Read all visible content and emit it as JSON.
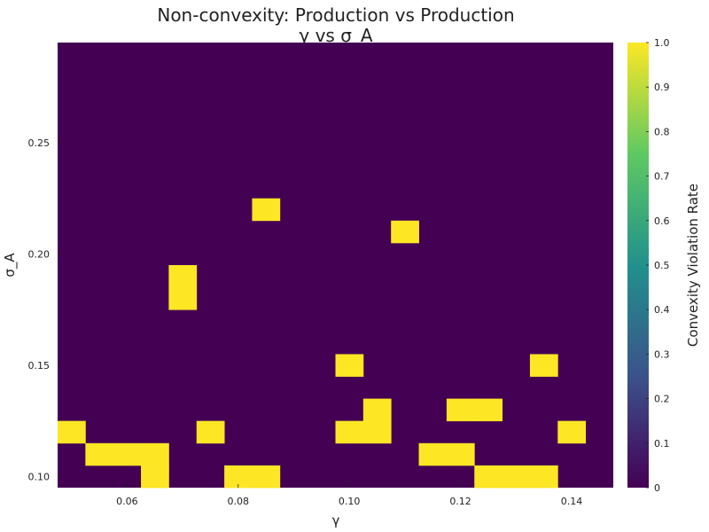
{
  "chart_data": {
    "type": "heatmap",
    "title": "Non-convexity: Production vs Production",
    "subtitle": "γ vs σ_A",
    "xlabel": "γ",
    "ylabel": "σ_A",
    "colorbar_label": "Convexity Violation Rate",
    "colormap": "viridis",
    "colormap_colors": [
      "#440154",
      "#3b528b",
      "#21918c",
      "#5ec962",
      "#fde725"
    ],
    "xlim": [
      0.0475,
      0.1475
    ],
    "ylim": [
      0.095,
      0.295
    ],
    "zlim": [
      0,
      1
    ],
    "cell_width": 0.005,
    "cell_height": 0.01,
    "background_value": 0,
    "x_ticks": [
      {
        "value": 0.06,
        "label": "0.06"
      },
      {
        "value": 0.08,
        "label": "0.08"
      },
      {
        "value": 0.1,
        "label": "0.10"
      },
      {
        "value": 0.12,
        "label": "0.12"
      },
      {
        "value": 0.14,
        "label": "0.14"
      }
    ],
    "y_ticks": [
      {
        "value": 0.1,
        "label": "0.10"
      },
      {
        "value": 0.15,
        "label": "0.15"
      },
      {
        "value": 0.2,
        "label": "0.20"
      },
      {
        "value": 0.25,
        "label": "0.25"
      }
    ],
    "colorbar_ticks": [
      {
        "value": 0,
        "label": "0"
      },
      {
        "value": 0.1,
        "label": "0.1"
      },
      {
        "value": 0.2,
        "label": "0.2"
      },
      {
        "value": 0.3,
        "label": "0.3"
      },
      {
        "value": 0.4,
        "label": "0.4"
      },
      {
        "value": 0.5,
        "label": "0.5"
      },
      {
        "value": 0.6,
        "label": "0.6"
      },
      {
        "value": 0.7,
        "label": "0.7"
      },
      {
        "value": 0.8,
        "label": "0.8"
      },
      {
        "value": 0.9,
        "label": "0.9"
      },
      {
        "value": 1,
        "label": "1.0"
      }
    ],
    "cells": [
      {
        "x": 0.065,
        "y": 0.1,
        "value": 1
      },
      {
        "x": 0.08,
        "y": 0.1,
        "value": 1
      },
      {
        "x": 0.085,
        "y": 0.1,
        "value": 1
      },
      {
        "x": 0.125,
        "y": 0.1,
        "value": 1
      },
      {
        "x": 0.13,
        "y": 0.1,
        "value": 1
      },
      {
        "x": 0.135,
        "y": 0.1,
        "value": 1
      },
      {
        "x": 0.055,
        "y": 0.11,
        "value": 1
      },
      {
        "x": 0.06,
        "y": 0.11,
        "value": 1
      },
      {
        "x": 0.065,
        "y": 0.11,
        "value": 1
      },
      {
        "x": 0.115,
        "y": 0.11,
        "value": 1
      },
      {
        "x": 0.12,
        "y": 0.11,
        "value": 1
      },
      {
        "x": 0.05,
        "y": 0.12,
        "value": 1
      },
      {
        "x": 0.075,
        "y": 0.12,
        "value": 1
      },
      {
        "x": 0.1,
        "y": 0.12,
        "value": 1
      },
      {
        "x": 0.105,
        "y": 0.12,
        "value": 1
      },
      {
        "x": 0.14,
        "y": 0.12,
        "value": 1
      },
      {
        "x": 0.105,
        "y": 0.13,
        "value": 1
      },
      {
        "x": 0.12,
        "y": 0.13,
        "value": 1
      },
      {
        "x": 0.125,
        "y": 0.13,
        "value": 1
      },
      {
        "x": 0.1,
        "y": 0.15,
        "value": 1
      },
      {
        "x": 0.135,
        "y": 0.15,
        "value": 1
      },
      {
        "x": 0.07,
        "y": 0.18,
        "value": 1
      },
      {
        "x": 0.07,
        "y": 0.19,
        "value": 1
      },
      {
        "x": 0.11,
        "y": 0.21,
        "value": 1
      },
      {
        "x": 0.085,
        "y": 0.22,
        "value": 1
      }
    ]
  }
}
